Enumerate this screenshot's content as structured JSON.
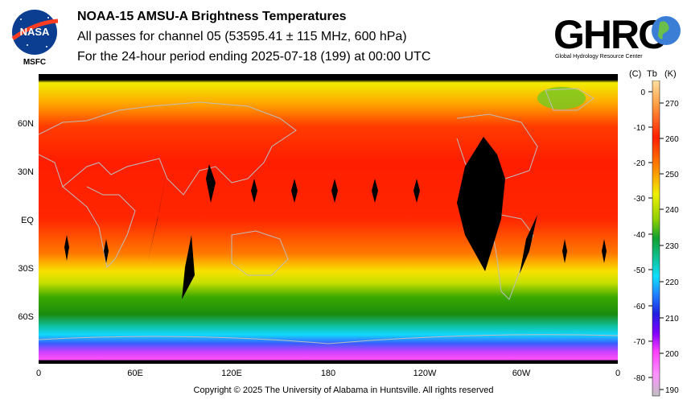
{
  "header": {
    "title": "NOAA-15 AMSU-A Brightness Temperatures",
    "subtitle1": "All passes for channel 05 (53595.41 ± 115 MHz, 600 hPa)",
    "subtitle2": "For the 24-hour period ending 2025-07-18 (199) at 00:00 UTC"
  },
  "logos": {
    "nasa_text": "NASA",
    "msfc_text": "MSFC",
    "ghrc_text": "GHRC",
    "ghrc_caption": "Global Hydrology Resource Center"
  },
  "map": {
    "lat_labels": [
      "60N",
      "30N",
      "EQ",
      "30S",
      "60S"
    ],
    "lon_labels": [
      "0",
      "60E",
      "120E",
      "180",
      "120W",
      "60W",
      "0"
    ]
  },
  "colorbar": {
    "unit_c": "(C)",
    "unit_tb": "Tb",
    "unit_k": "(K)",
    "celsius_ticks": [
      "0",
      "-10",
      "-20",
      "-30",
      "-40",
      "-50",
      "-60",
      "-70",
      "-80"
    ],
    "kelvin_ticks": [
      "270",
      "260",
      "250",
      "240",
      "230",
      "220",
      "210",
      "200",
      "190"
    ]
  },
  "footer": {
    "copyright": "Copyright © 2025 The University of Alabama in Huntsville.  All rights reserved"
  },
  "colors": {
    "warm": "#ff2a00",
    "neutral": "#f0f000",
    "cool": "#00a000",
    "cold": "#0040ff",
    "coldest": "#ff40ff"
  }
}
